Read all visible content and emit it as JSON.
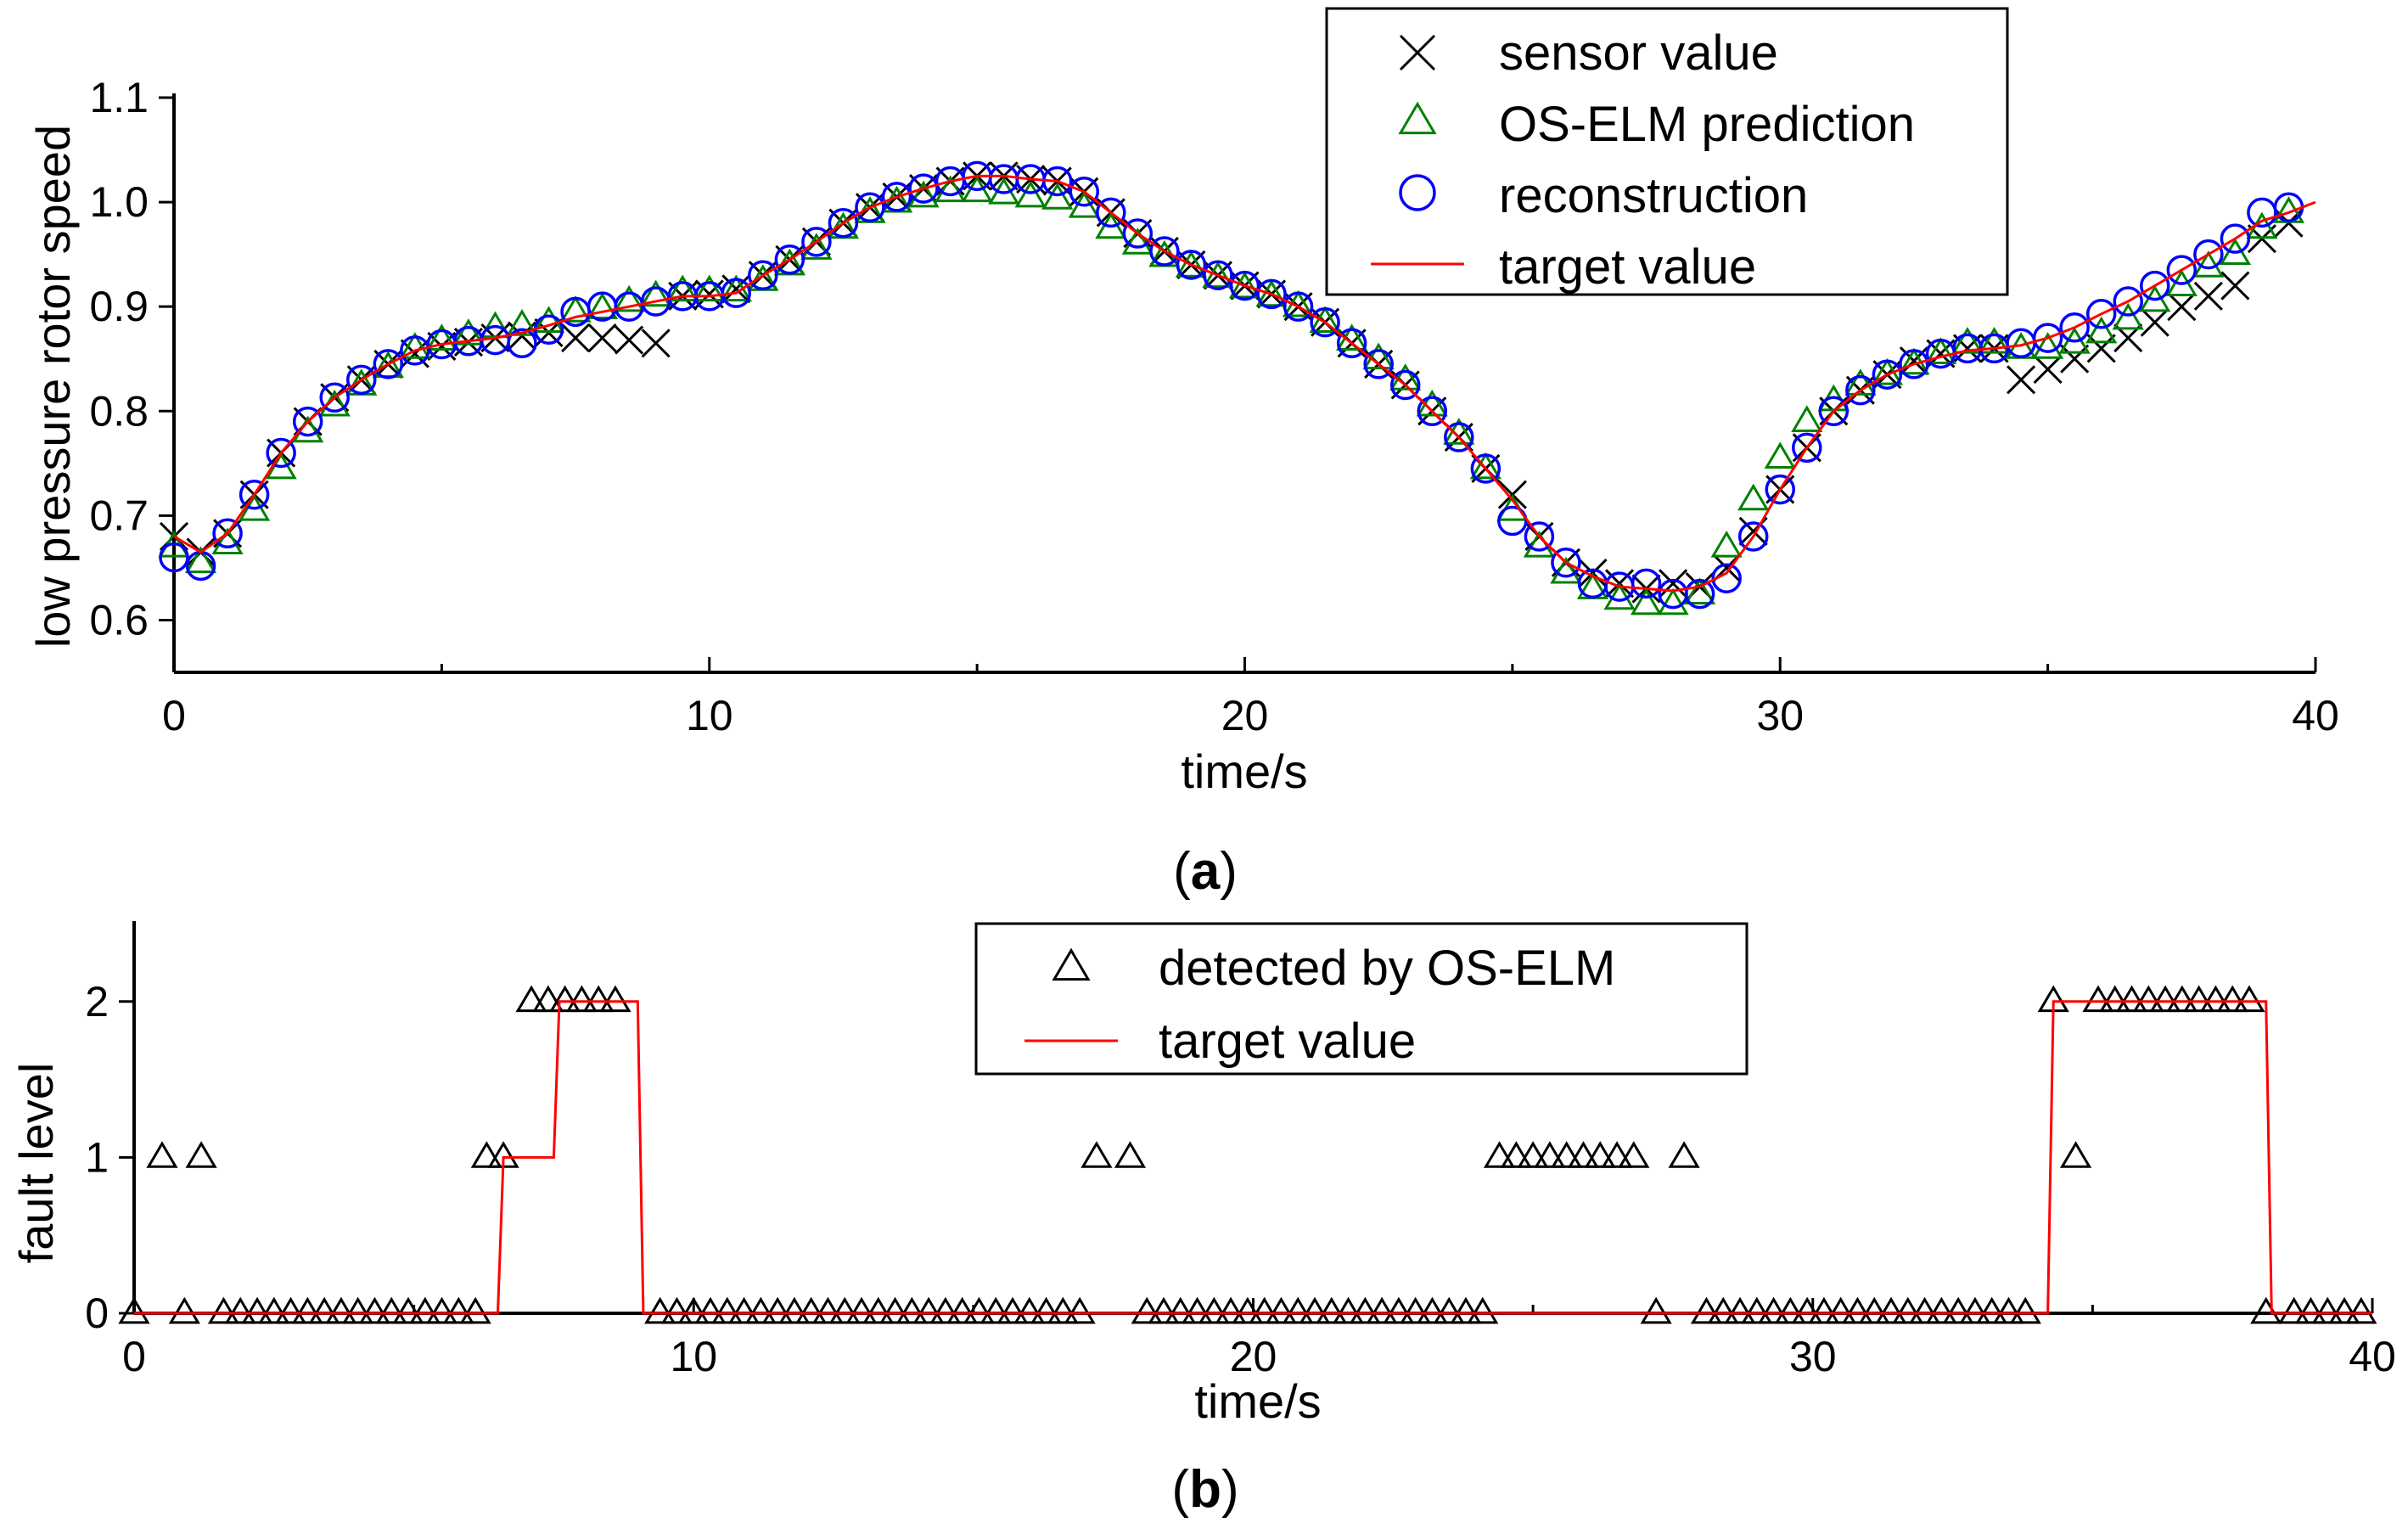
{
  "chart_data": [
    {
      "type": "line",
      "panel_label": {
        "open": "(",
        "letter": "a",
        "close": ")"
      },
      "xlabel": "time/s",
      "ylabel": "low pressure rotor speed",
      "xlim": [
        0,
        40
      ],
      "ylim": [
        0.55,
        1.1
      ],
      "xticks": [
        0,
        10,
        20,
        30,
        40
      ],
      "yticks": [
        0.6,
        0.7,
        0.8,
        0.9,
        1.0,
        1.1
      ],
      "ytick_labels": [
        "0.6",
        "0.7",
        "0.8",
        "0.9",
        "1.0",
        "1.1"
      ],
      "grid": false,
      "legend_position": "top-right",
      "series": [
        {
          "name": "sensor value",
          "marker": "x",
          "color": "#000000",
          "x": [
            0,
            0.5,
            1,
            1.5,
            2,
            2.5,
            3,
            3.5,
            4,
            4.5,
            5,
            5.5,
            6,
            6.5,
            7,
            7.5,
            8,
            8.5,
            9,
            9.5,
            10,
            10.5,
            11,
            11.5,
            12,
            12.5,
            13,
            13.5,
            14,
            14.5,
            15,
            15.5,
            16,
            16.5,
            17,
            17.5,
            18,
            18.5,
            19,
            19.5,
            20,
            20.5,
            21,
            21.5,
            22,
            22.5,
            23,
            23.5,
            24,
            24.5,
            25,
            25.5,
            26,
            26.5,
            27,
            27.5,
            28,
            28.5,
            29,
            29.5,
            30,
            30.5,
            31,
            31.5,
            32,
            32.5,
            33,
            33.5,
            34,
            34.5,
            35,
            35.5,
            36,
            36.5,
            37,
            37.5,
            38,
            38.5,
            39,
            39.5
          ],
          "y": [
            0.68,
            0.665,
            0.683,
            0.72,
            0.76,
            0.79,
            0.813,
            0.83,
            0.845,
            0.855,
            0.862,
            0.866,
            0.87,
            0.872,
            0.875,
            0.87,
            0.87,
            0.868,
            0.865,
            0.91,
            0.912,
            0.917,
            0.93,
            0.945,
            0.962,
            0.98,
            0.995,
            1.005,
            1.013,
            1.02,
            1.025,
            1.025,
            1.022,
            1.02,
            1.01,
            0.99,
            0.97,
            0.953,
            0.94,
            0.93,
            0.92,
            0.912,
            0.9,
            0.885,
            0.865,
            0.845,
            0.825,
            0.8,
            0.775,
            0.745,
            0.72,
            0.68,
            0.655,
            0.645,
            0.635,
            0.63,
            0.635,
            0.632,
            0.65,
            0.685,
            0.725,
            0.765,
            0.8,
            0.82,
            0.835,
            0.848,
            0.855,
            0.86,
            0.86,
            0.83,
            0.84,
            0.85,
            0.86,
            0.87,
            0.885,
            0.9,
            0.91,
            0.92,
            0.965,
            0.98
          ]
        },
        {
          "name": "OS-ELM prediction",
          "marker": "triangle",
          "color": "#008000",
          "x": [
            0,
            0.5,
            1,
            1.5,
            2,
            2.5,
            3,
            3.5,
            4,
            4.5,
            5,
            5.5,
            6,
            6.5,
            7,
            7.5,
            8,
            8.5,
            9,
            9.5,
            10,
            10.5,
            11,
            11.5,
            12,
            12.5,
            13,
            13.5,
            14,
            14.5,
            15,
            15.5,
            16,
            16.5,
            17,
            17.5,
            18,
            18.5,
            19,
            19.5,
            20,
            20.5,
            21,
            21.5,
            22,
            22.5,
            23,
            23.5,
            24,
            24.5,
            25,
            25.5,
            26,
            26.5,
            27,
            27.5,
            28,
            28.5,
            29,
            29.5,
            30,
            30.5,
            31,
            31.5,
            32,
            32.5,
            33,
            33.5,
            34,
            34.5,
            35,
            35.5,
            36,
            36.5,
            37,
            37.5,
            38,
            38.5,
            39,
            39.5
          ],
          "y": [
            0.67,
            0.655,
            0.673,
            0.705,
            0.745,
            0.78,
            0.805,
            0.825,
            0.842,
            0.86,
            0.868,
            0.873,
            0.88,
            0.882,
            0.885,
            0.895,
            0.898,
            0.905,
            0.91,
            0.915,
            0.915,
            0.915,
            0.925,
            0.94,
            0.955,
            0.975,
            0.99,
            1.0,
            1.005,
            1.01,
            1.01,
            1.008,
            1.005,
            1.003,
            0.995,
            0.975,
            0.96,
            0.948,
            0.938,
            0.928,
            0.918,
            0.91,
            0.9,
            0.885,
            0.868,
            0.85,
            0.83,
            0.805,
            0.778,
            0.745,
            0.705,
            0.67,
            0.645,
            0.63,
            0.62,
            0.615,
            0.615,
            0.625,
            0.67,
            0.715,
            0.755,
            0.79,
            0.81,
            0.825,
            0.835,
            0.845,
            0.855,
            0.865,
            0.865,
            0.86,
            0.86,
            0.865,
            0.875,
            0.888,
            0.905,
            0.92,
            0.938,
            0.95,
            0.975,
            0.99
          ]
        },
        {
          "name": "reconstruction",
          "marker": "circle",
          "color": "#0000ff",
          "x": [
            0,
            0.5,
            1,
            1.5,
            2,
            2.5,
            3,
            3.5,
            4,
            4.5,
            5,
            5.5,
            6,
            6.5,
            7,
            7.5,
            8,
            8.5,
            9,
            9.5,
            10,
            10.5,
            11,
            11.5,
            12,
            12.5,
            13,
            13.5,
            14,
            14.5,
            15,
            15.5,
            16,
            16.5,
            17,
            17.5,
            18,
            18.5,
            19,
            19.5,
            20,
            20.5,
            21,
            21.5,
            22,
            22.5,
            23,
            23.5,
            24,
            24.5,
            25,
            25.5,
            26,
            26.5,
            27,
            27.5,
            28,
            28.5,
            29,
            29.5,
            30,
            30.5,
            31,
            31.5,
            32,
            32.5,
            33,
            33.5,
            34,
            34.5,
            35,
            35.5,
            36,
            36.5,
            37,
            37.5,
            38,
            38.5,
            39,
            39.5
          ],
          "y": [
            0.66,
            0.652,
            0.683,
            0.72,
            0.76,
            0.79,
            0.813,
            0.83,
            0.845,
            0.858,
            0.864,
            0.867,
            0.868,
            0.865,
            0.878,
            0.895,
            0.9,
            0.9,
            0.905,
            0.91,
            0.91,
            0.913,
            0.93,
            0.945,
            0.962,
            0.98,
            0.995,
            1.005,
            1.013,
            1.02,
            1.025,
            1.022,
            1.022,
            1.02,
            1.01,
            0.99,
            0.97,
            0.953,
            0.94,
            0.93,
            0.92,
            0.912,
            0.9,
            0.885,
            0.865,
            0.845,
            0.825,
            0.8,
            0.775,
            0.745,
            0.695,
            0.68,
            0.655,
            0.635,
            0.632,
            0.635,
            0.625,
            0.625,
            0.64,
            0.68,
            0.725,
            0.765,
            0.8,
            0.82,
            0.835,
            0.845,
            0.855,
            0.86,
            0.86,
            0.865,
            0.87,
            0.88,
            0.893,
            0.905,
            0.92,
            0.935,
            0.95,
            0.965,
            0.99,
            0.995
          ]
        },
        {
          "name": "target value",
          "marker": "line",
          "color": "#ff0000",
          "x": [
            0,
            0.5,
            1,
            1.5,
            2,
            2.5,
            3,
            3.5,
            4,
            4.5,
            5,
            5.5,
            6,
            6.5,
            7,
            7.5,
            8,
            8.5,
            9,
            9.5,
            10,
            10.5,
            11,
            11.5,
            12,
            12.5,
            13,
            13.5,
            14,
            14.5,
            15,
            15.5,
            16,
            16.5,
            17,
            17.5,
            18,
            18.5,
            19,
            19.5,
            20,
            20.5,
            21,
            21.5,
            22,
            22.5,
            23,
            23.5,
            24,
            24.5,
            25,
            25.5,
            26,
            26.5,
            27,
            27.5,
            28,
            28.5,
            29,
            29.5,
            30,
            30.5,
            31,
            31.5,
            32,
            32.5,
            33,
            33.5,
            34,
            34.5,
            35,
            35.5,
            36,
            36.5,
            37,
            37.5,
            38,
            38.5,
            39,
            39.5,
            40
          ],
          "y": [
            0.68,
            0.665,
            0.683,
            0.72,
            0.76,
            0.79,
            0.813,
            0.83,
            0.845,
            0.858,
            0.864,
            0.867,
            0.87,
            0.875,
            0.882,
            0.89,
            0.895,
            0.9,
            0.905,
            0.91,
            0.91,
            0.913,
            0.93,
            0.945,
            0.962,
            0.98,
            0.995,
            1.005,
            1.013,
            1.02,
            1.025,
            1.025,
            1.022,
            1.02,
            1.01,
            0.99,
            0.97,
            0.953,
            0.94,
            0.93,
            0.92,
            0.912,
            0.9,
            0.885,
            0.865,
            0.845,
            0.825,
            0.8,
            0.775,
            0.745,
            0.715,
            0.68,
            0.655,
            0.642,
            0.632,
            0.63,
            0.628,
            0.632,
            0.645,
            0.68,
            0.725,
            0.765,
            0.8,
            0.82,
            0.835,
            0.845,
            0.852,
            0.858,
            0.86,
            0.863,
            0.87,
            0.88,
            0.893,
            0.905,
            0.92,
            0.935,
            0.95,
            0.965,
            0.982,
            0.99,
            1.0
          ]
        }
      ]
    },
    {
      "type": "line",
      "panel_label": {
        "open": "(",
        "letter": "b",
        "close": ")"
      },
      "xlabel": "time/s",
      "ylabel": "fault level",
      "xlim": [
        0,
        40
      ],
      "ylim": [
        0,
        2.5
      ],
      "xticks": [
        0,
        10,
        20,
        30,
        40
      ],
      "yticks": [
        0,
        1,
        2
      ],
      "grid": false,
      "legend_position": "top-center",
      "series": [
        {
          "name": "detected by OS-ELM",
          "marker": "triangle",
          "color": "#000000",
          "x": [
            0,
            0.5,
            0.9,
            1.2,
            1.6,
            1.9,
            2.2,
            2.5,
            2.8,
            3.1,
            3.4,
            3.7,
            4,
            4.3,
            4.6,
            4.9,
            5.2,
            5.5,
            5.8,
            6.1,
            6.3,
            6.6,
            7.1,
            7.4,
            7.7,
            8,
            8.3,
            8.6,
            9.4,
            9.7,
            10,
            10.3,
            10.6,
            10.9,
            11.2,
            11.5,
            11.8,
            12.1,
            12.4,
            12.7,
            13,
            13.3,
            13.6,
            13.9,
            14.2,
            14.5,
            14.8,
            15.1,
            15.4,
            15.7,
            16,
            16.3,
            16.6,
            16.9,
            17.2,
            17.8,
            18.1,
            18.4,
            18.7,
            19,
            19.3,
            19.6,
            19.9,
            20.2,
            20.5,
            20.8,
            21.1,
            21.4,
            21.7,
            22,
            22.3,
            22.6,
            22.9,
            23.2,
            23.5,
            23.8,
            24.1,
            24.4,
            24.7,
            25,
            25.3,
            25.6,
            25.9,
            26.2,
            26.5,
            26.8,
            27.2,
            27.7,
            28.1,
            28.4,
            28.7,
            29,
            29.3,
            29.6,
            29.9,
            30.2,
            30.5,
            30.8,
            31.1,
            31.4,
            31.7,
            32,
            32.3,
            32.6,
            32.9,
            33.2,
            33.5,
            33.8,
            34.3,
            34.7,
            35.1,
            35.4,
            35.7,
            36,
            36.3,
            36.6,
            36.9,
            37.2,
            37.5,
            37.8,
            38.1,
            38.6,
            38.9,
            39.2,
            39.5,
            39.8
          ],
          "y": [
            0,
            1,
            0,
            1,
            0,
            0,
            0,
            0,
            0,
            0,
            0,
            0,
            0,
            0,
            0,
            0,
            0,
            0,
            0,
            0,
            1,
            1,
            2,
            2,
            2,
            2,
            2,
            2,
            0,
            0,
            0,
            0,
            0,
            0,
            0,
            0,
            0,
            0,
            0,
            0,
            0,
            0,
            0,
            0,
            0,
            0,
            0,
            0,
            0,
            0,
            0,
            0,
            0,
            0,
            1,
            1,
            0,
            0,
            0,
            0,
            0,
            0,
            0,
            0,
            0,
            0,
            0,
            0,
            0,
            0,
            0,
            0,
            0,
            0,
            0,
            0,
            0,
            1,
            1,
            1,
            1,
            1,
            1,
            1,
            1,
            1,
            0,
            1,
            0,
            0,
            0,
            0,
            0,
            0,
            0,
            0,
            0,
            0,
            0,
            0,
            0,
            0,
            0,
            0,
            0,
            0,
            0,
            0,
            2,
            1,
            2,
            2,
            2,
            2,
            2,
            2,
            2,
            2,
            2,
            2,
            0,
            0,
            0,
            0,
            0,
            0
          ]
        },
        {
          "name": "target value",
          "marker": "line",
          "color": "#ff0000",
          "x": [
            0,
            6.5,
            6.6,
            7.5,
            7.6,
            9.0,
            9.1,
            34.2,
            34.3,
            38.1,
            38.2,
            40
          ],
          "y": [
            0,
            0,
            1,
            1,
            2,
            2,
            0,
            0,
            2,
            2,
            0,
            0
          ]
        }
      ]
    }
  ]
}
